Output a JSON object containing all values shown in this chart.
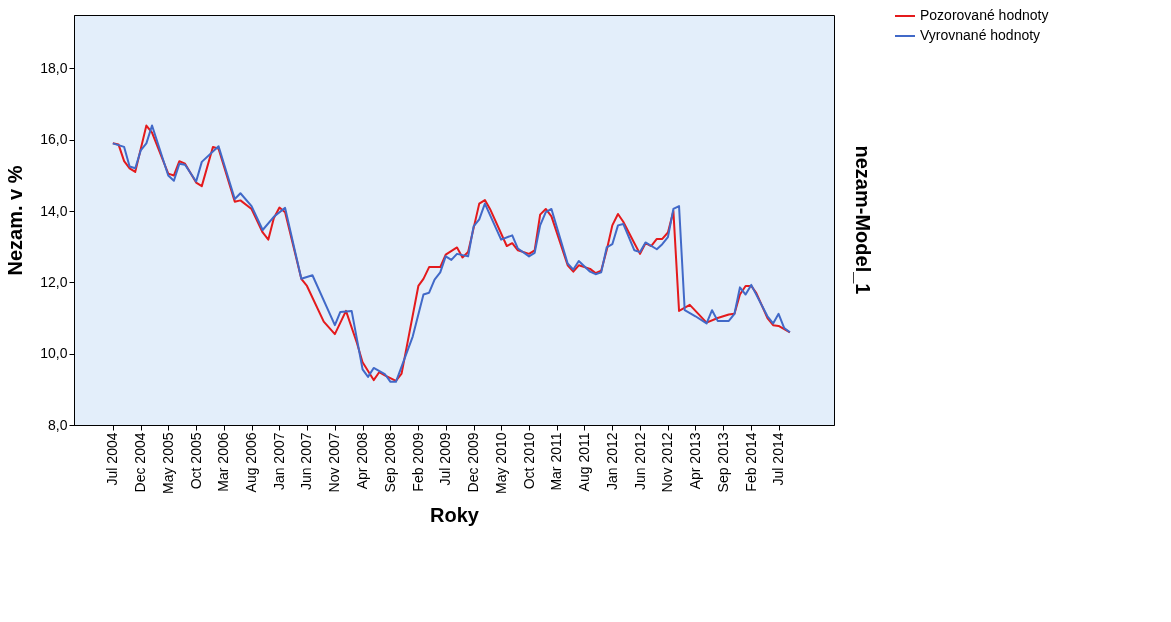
{
  "chart_data": {
    "type": "line",
    "xlabel": "Roky",
    "ylabel": "Nezam. v %",
    "y2label": "nezam-Model_1",
    "xlim": [
      "2003-12",
      "2015-05"
    ],
    "xticks": [
      {
        "value": "2004-07",
        "label": "Jul 2004"
      },
      {
        "value": "2004-12",
        "label": "Dec 2004"
      },
      {
        "value": "2005-05",
        "label": "May 2005"
      },
      {
        "value": "2005-10",
        "label": "Oct 2005"
      },
      {
        "value": "2006-03",
        "label": "Mar 2006"
      },
      {
        "value": "2006-08",
        "label": "Aug 2006"
      },
      {
        "value": "2007-01",
        "label": "Jan 2007"
      },
      {
        "value": "2007-06",
        "label": "Jun 2007"
      },
      {
        "value": "2007-11",
        "label": "Nov 2007"
      },
      {
        "value": "2008-04",
        "label": "Apr 2008"
      },
      {
        "value": "2008-09",
        "label": "Sep 2008"
      },
      {
        "value": "2009-02",
        "label": "Feb 2009"
      },
      {
        "value": "2009-07",
        "label": "Jul 2009"
      },
      {
        "value": "2009-12",
        "label": "Dec 2009"
      },
      {
        "value": "2010-05",
        "label": "May 2010"
      },
      {
        "value": "2010-10",
        "label": "Oct 2010"
      },
      {
        "value": "2011-03",
        "label": "Mar 2011"
      },
      {
        "value": "2011-08",
        "label": "Aug 2011"
      },
      {
        "value": "2012-01",
        "label": "Jan 2012"
      },
      {
        "value": "2012-06",
        "label": "Jun 2012"
      },
      {
        "value": "2012-11",
        "label": "Nov 2012"
      },
      {
        "value": "2013-04",
        "label": "Apr 2013"
      },
      {
        "value": "2013-09",
        "label": "Sep 2013"
      },
      {
        "value": "2014-02",
        "label": "Feb 2014"
      },
      {
        "value": "2014-07",
        "label": "Jul 2014"
      }
    ],
    "ylim": [
      8,
      19.5
    ],
    "yticks": [
      {
        "value": 8,
        "label": "8,0"
      },
      {
        "value": 10,
        "label": "10,0"
      },
      {
        "value": 12,
        "label": "12,0"
      },
      {
        "value": 14,
        "label": "14,0"
      },
      {
        "value": 16,
        "label": "16,0"
      },
      {
        "value": 18,
        "label": "18,0"
      }
    ],
    "grid": false,
    "legend": "top right",
    "marker": "none",
    "line_style": "solid",
    "series": [
      {
        "name": "Pozorované hodnoty",
        "color": "#e41a1c",
        "x": [
          "2004-07",
          "2004-08",
          "2004-09",
          "2004-10",
          "2004-11",
          "2005-01",
          "2005-02",
          "2005-05",
          "2005-06",
          "2005-07",
          "2005-08",
          "2005-10",
          "2005-11",
          "2006-01",
          "2006-02",
          "2006-05",
          "2006-06",
          "2006-08",
          "2006-10",
          "2006-11",
          "2006-12",
          "2007-01",
          "2007-02",
          "2007-05",
          "2007-06",
          "2007-09",
          "2007-11",
          "2008-01",
          "2008-03",
          "2008-04",
          "2008-06",
          "2008-07",
          "2008-08",
          "2008-10",
          "2008-11",
          "2009-02",
          "2009-03",
          "2009-04",
          "2009-06",
          "2009-07",
          "2009-09",
          "2009-10",
          "2009-11",
          "2010-01",
          "2010-02",
          "2010-03",
          "2010-06",
          "2010-07",
          "2010-08",
          "2010-10",
          "2010-11",
          "2010-12",
          "2011-01",
          "2011-02",
          "2011-05",
          "2011-06",
          "2011-07",
          "2011-09",
          "2011-10",
          "2011-11",
          "2011-12",
          "2012-01",
          "2012-02",
          "2012-03",
          "2012-05",
          "2012-06",
          "2012-07",
          "2012-08",
          "2012-09",
          "2012-10",
          "2012-11",
          "2012-12",
          "2013-01",
          "2013-03",
          "2013-06",
          "2013-08",
          "2013-10",
          "2013-11",
          "2013-12",
          "2014-01",
          "2014-02",
          "2014-03",
          "2014-05",
          "2014-06",
          "2014-07",
          "2014-09"
        ],
        "values": [
          15.9,
          15.87,
          15.4,
          15.2,
          15.1,
          16.4,
          16.2,
          15.05,
          15.0,
          15.4,
          15.33,
          14.8,
          14.7,
          15.8,
          15.75,
          14.26,
          14.3,
          14.06,
          13.4,
          13.2,
          13.8,
          14.1,
          13.97,
          12.1,
          11.9,
          10.9,
          10.55,
          11.2,
          10.3,
          9.76,
          9.26,
          9.48,
          9.39,
          9.24,
          9.44,
          11.9,
          12.1,
          12.43,
          12.43,
          12.78,
          12.98,
          12.7,
          12.85,
          14.21,
          14.31,
          14.06,
          13.02,
          13.1,
          12.9,
          12.8,
          12.9,
          13.9,
          14.06,
          13.85,
          12.48,
          12.3,
          12.48,
          12.38,
          12.26,
          12.33,
          12.9,
          13.6,
          13.92,
          13.7,
          13.1,
          12.8,
          13.1,
          13.02,
          13.22,
          13.22,
          13.4,
          14.0,
          11.2,
          11.37,
          10.87,
          11.0,
          11.1,
          11.12,
          11.66,
          11.9,
          11.9,
          11.7,
          11.0,
          10.8,
          10.78,
          10.6
        ]
      },
      {
        "name": "Vyrovnané hodnoty",
        "color": "#4169c8",
        "x": [
          "2004-07",
          "2004-09",
          "2004-10",
          "2004-11",
          "2004-12",
          "2005-01",
          "2005-02",
          "2005-05",
          "2005-06",
          "2005-07",
          "2005-08",
          "2005-10",
          "2005-11",
          "2006-02",
          "2006-05",
          "2006-06",
          "2006-08",
          "2006-10",
          "2006-12",
          "2007-02",
          "2007-05",
          "2007-07",
          "2007-11",
          "2007-12",
          "2008-02",
          "2008-04",
          "2008-05",
          "2008-06",
          "2008-08",
          "2008-09",
          "2008-10",
          "2009-01",
          "2009-03",
          "2009-04",
          "2009-05",
          "2009-06",
          "2009-07",
          "2009-08",
          "2009-09",
          "2009-11",
          "2009-12",
          "2010-01",
          "2010-02",
          "2010-05",
          "2010-07",
          "2010-08",
          "2010-10",
          "2010-11",
          "2010-12",
          "2011-01",
          "2011-02",
          "2011-05",
          "2011-06",
          "2011-07",
          "2011-09",
          "2011-10",
          "2011-11",
          "2011-12",
          "2012-01",
          "2012-02",
          "2012-03",
          "2012-05",
          "2012-06",
          "2012-07",
          "2012-09",
          "2012-10",
          "2012-11",
          "2012-12",
          "2013-01",
          "2013-02",
          "2013-04",
          "2013-06",
          "2013-07",
          "2013-08",
          "2013-10",
          "2013-11",
          "2013-12",
          "2014-01",
          "2014-02",
          "2014-05",
          "2014-06",
          "2014-07",
          "2014-08",
          "2014-09"
        ],
        "values": [
          15.9,
          15.8,
          15.25,
          15.2,
          15.7,
          15.9,
          16.4,
          15.0,
          14.85,
          15.33,
          15.3,
          14.83,
          15.38,
          15.82,
          14.34,
          14.5,
          14.14,
          13.47,
          13.84,
          14.09,
          12.1,
          12.2,
          10.8,
          11.17,
          11.2,
          9.56,
          9.35,
          9.6,
          9.43,
          9.21,
          9.21,
          10.48,
          11.66,
          11.71,
          12.08,
          12.28,
          12.73,
          12.63,
          12.8,
          12.73,
          13.57,
          13.77,
          14.21,
          13.2,
          13.32,
          12.95,
          12.73,
          12.83,
          13.6,
          13.97,
          14.06,
          12.53,
          12.36,
          12.6,
          12.3,
          12.23,
          12.28,
          12.98,
          13.07,
          13.6,
          13.64,
          12.9,
          12.85,
          13.12,
          12.93,
          13.07,
          13.27,
          14.06,
          14.14,
          11.22,
          11.05,
          10.85,
          11.22,
          10.92,
          10.92,
          11.12,
          11.86,
          11.66,
          11.93,
          11.05,
          10.85,
          11.12,
          10.72,
          10.6
        ]
      }
    ]
  }
}
